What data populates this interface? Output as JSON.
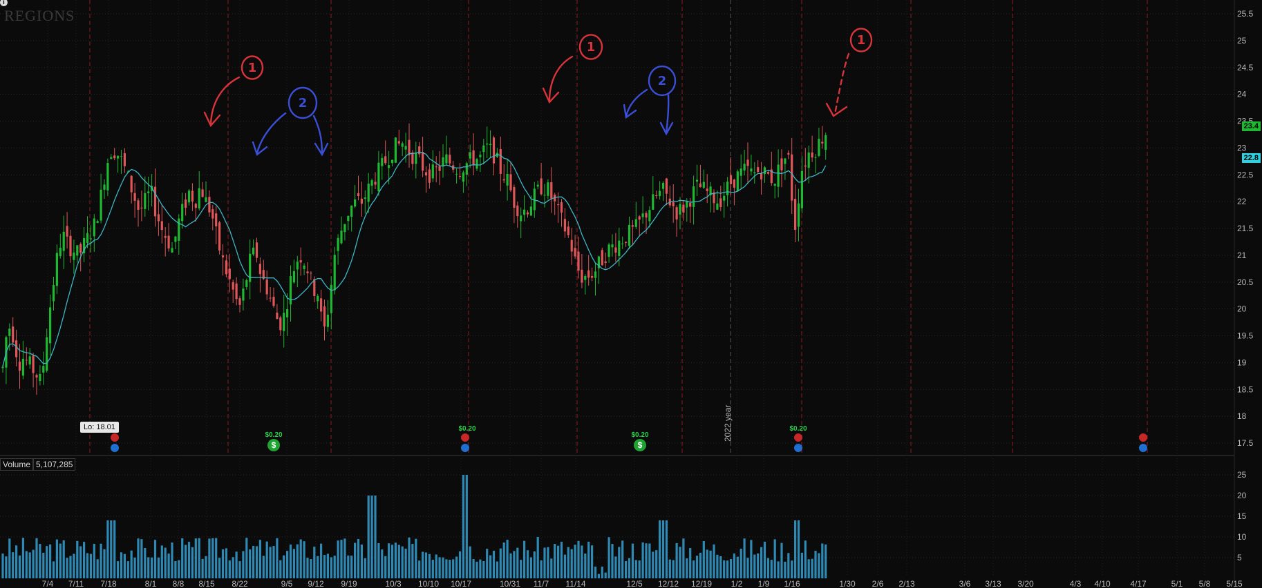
{
  "app": {
    "symbol_logo": "REGIONS",
    "info_icon": "info-icon",
    "volume_label": "Volume",
    "volume_value": "5,107,285",
    "lo_label": "Lo: 18.01",
    "year_marker": "2022 year",
    "last_price_tag": "23.4",
    "ma_price_tag": "22.8",
    "colors": {
      "up": "#1fb833",
      "down": "#e0575a",
      "ma": "#3fb6c6",
      "volume": "#2e8ab5",
      "annot_red": "#d8343b",
      "annot_blue": "#3a4fd6"
    }
  },
  "chart_data": [
    {
      "type": "candlestick",
      "title": "",
      "y_ticks": [
        "25.5",
        "25",
        "24.5",
        "24",
        "23.5",
        "23",
        "22.5",
        "22",
        "21.5",
        "21",
        "20.5",
        "20",
        "19.5",
        "19",
        "18.5",
        "18",
        "17.5"
      ],
      "ylim": [
        17.25,
        25.75
      ],
      "x_ticks": [
        "7/4",
        "7/11",
        "7/18",
        "8/1",
        "8/8",
        "8/15",
        "8/22",
        "9/5",
        "9/12",
        "9/19",
        "10/3",
        "10/10",
        "10/17",
        "10/31",
        "11/7",
        "11/14",
        "12/5",
        "12/12",
        "12/19",
        "1/2",
        "1/9",
        "1/16",
        "1/30",
        "2/6",
        "2/13",
        "3/6",
        "3/13",
        "3/20",
        "4/3",
        "4/10",
        "4/17",
        "5/1",
        "5/8",
        "5/15"
      ],
      "annotations": [
        "1",
        "2",
        "2",
        "1",
        "2",
        "2",
        "1"
      ],
      "events": [
        {
          "label": "$0.20"
        },
        {
          "label": "$0.20"
        },
        {
          "label": "$0.20"
        }
      ],
      "legend": "none"
    },
    {
      "type": "bar",
      "title": "",
      "y_ticks": [
        "25",
        "20",
        "15",
        "10",
        "5"
      ],
      "ylim": [
        0,
        26
      ],
      "units": "millions"
    }
  ]
}
